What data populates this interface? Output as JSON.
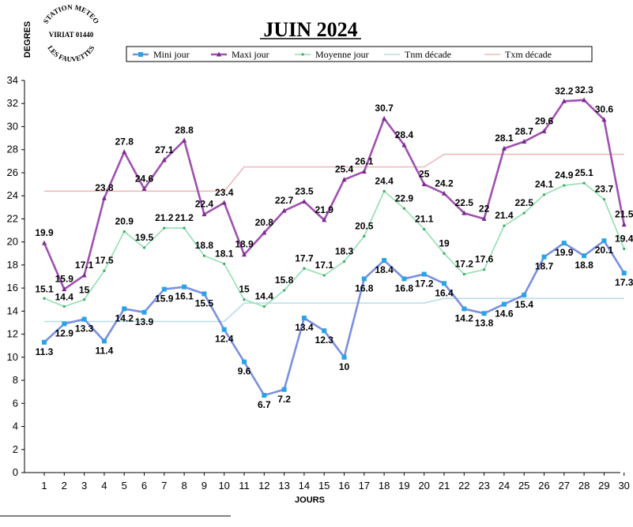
{
  "chart_data": {
    "type": "line",
    "title": "JUIN 2024",
    "ylabel": "DEGRES",
    "xlabel": "JOURS",
    "ylim": [
      0,
      34
    ],
    "yticks": [
      0,
      2,
      4,
      6,
      8,
      10,
      12,
      14,
      16,
      18,
      20,
      22,
      24,
      26,
      28,
      30,
      32,
      34
    ],
    "x": [
      1,
      2,
      3,
      4,
      5,
      6,
      7,
      8,
      9,
      10,
      11,
      12,
      13,
      14,
      15,
      16,
      17,
      18,
      19,
      20,
      21,
      22,
      23,
      24,
      25,
      26,
      27,
      28,
      29,
      30
    ],
    "grid": false,
    "legend": "top",
    "series": [
      {
        "name": "Mini jour",
        "color": "#7b8fe0",
        "marker": "#29a3e8",
        "values": [
          11.3,
          12.9,
          13.3,
          11.4,
          14.2,
          13.9,
          15.9,
          16.1,
          15.5,
          12.4,
          9.6,
          6.7,
          7.2,
          13.4,
          12.3,
          10,
          16.8,
          18.4,
          16.8,
          17.2,
          16.4,
          14.2,
          13.8,
          14.6,
          15.4,
          18.7,
          19.9,
          18.8,
          20.1,
          17.3
        ]
      },
      {
        "name": "Maxi jour",
        "color": "#a050b0",
        "marker": "#7a2a8c",
        "values": [
          19.9,
          15.9,
          17.1,
          23.8,
          27.8,
          24.6,
          27.1,
          28.8,
          22.4,
          23.4,
          18.9,
          20.8,
          22.7,
          23.5,
          21.9,
          25.4,
          26.1,
          30.7,
          28.4,
          25,
          24.2,
          22.5,
          22,
          28.1,
          28.7,
          29.6,
          32.2,
          32.3,
          30.6,
          21.5
        ]
      },
      {
        "name": "Moyenne jour",
        "color": "#90e0b0",
        "marker": "#3aaa60",
        "values": [
          15.1,
          14.4,
          15,
          17.5,
          20.9,
          19.5,
          21.2,
          21.2,
          18.8,
          18.1,
          15,
          14.4,
          15.8,
          17.7,
          17.1,
          18.3,
          20.5,
          24.4,
          22.9,
          21.1,
          19,
          17.2,
          17.6,
          21.4,
          22.5,
          24.1,
          24.9,
          25.1,
          23.7,
          19.4
        ]
      },
      {
        "name": "Tnm décade",
        "color": "#b8dce8",
        "values": [
          13.1,
          13.1,
          13.1,
          13.1,
          13.1,
          13.1,
          13.1,
          13.1,
          13.1,
          13.1,
          14.7,
          14.7,
          14.7,
          14.7,
          14.7,
          14.7,
          14.7,
          14.7,
          14.7,
          14.7,
          15.1,
          15.1,
          15.1,
          15.1,
          15.1,
          15.1,
          15.1,
          15.1,
          15.1,
          15.1
        ]
      },
      {
        "name": "Txm décade",
        "color": "#f0b8b8",
        "values": [
          24.4,
          24.4,
          24.4,
          24.4,
          24.4,
          24.4,
          24.4,
          24.4,
          24.4,
          24.4,
          26.5,
          26.5,
          26.5,
          26.5,
          26.5,
          26.5,
          26.5,
          26.5,
          26.5,
          26.5,
          27.6,
          27.6,
          27.6,
          27.6,
          27.6,
          27.6,
          27.6,
          27.6,
          27.6,
          27.6
        ]
      }
    ]
  },
  "stamp": {
    "line1": "STATION METEO",
    "line2": "VIRIAT 01440",
    "line3": "LES FAUVETTES"
  }
}
